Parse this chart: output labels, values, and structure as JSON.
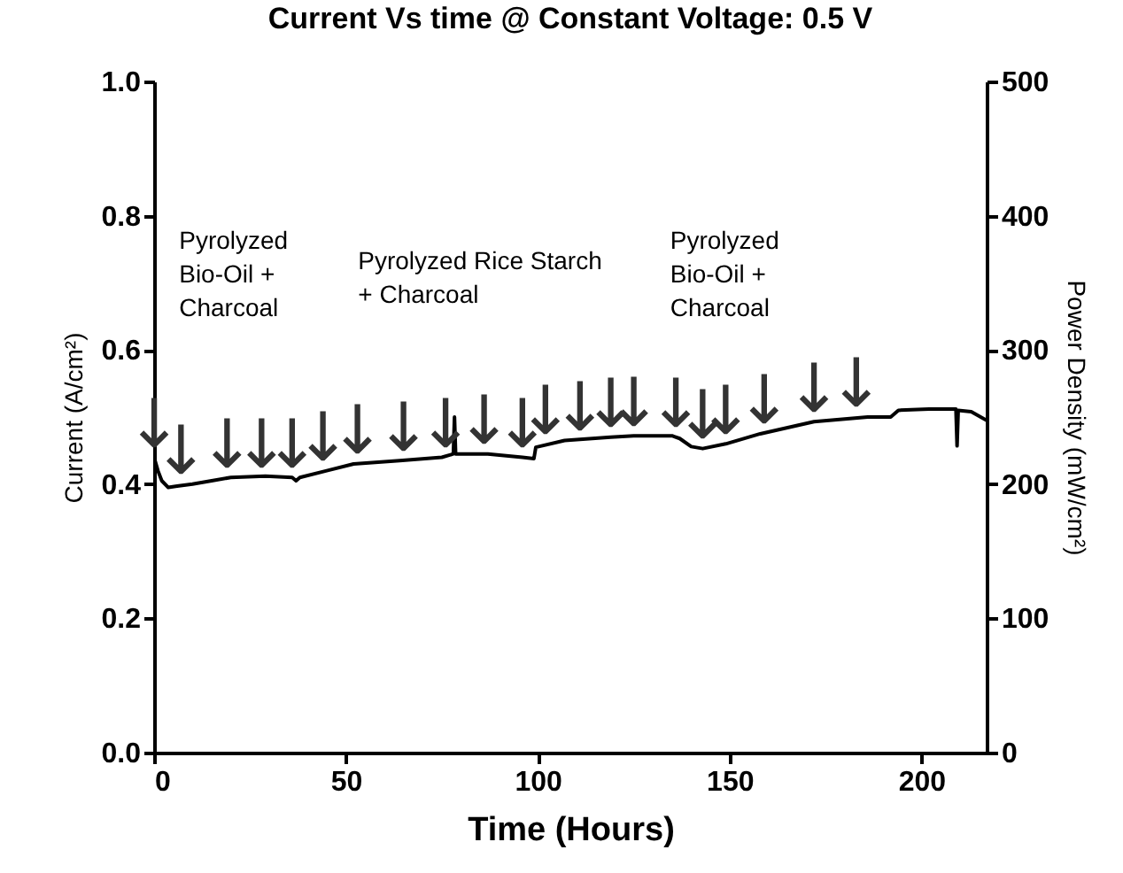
{
  "chart_data": {
    "type": "line",
    "title": "Current Vs time @ Constant Voltage: 0.5 V",
    "xlabel": "Time (Hours)",
    "ylabel": "Current (A/cm²)",
    "y2label": "Power Density (mW/cm²)",
    "series": [
      {
        "color": "#000000",
        "x": [
          0,
          1,
          2,
          3.7,
          6,
          10,
          15,
          20,
          29,
          36,
          37,
          38,
          45,
          52,
          64,
          75,
          78,
          78.3,
          78.6,
          87,
          96,
          99,
          99.5,
          107,
          119,
          125,
          135,
          137,
          140,
          143,
          149,
          158,
          172,
          186,
          192,
          194,
          202,
          209,
          209.3,
          209.6,
          213,
          217
        ],
        "values": [
          0.44,
          0.42,
          0.405,
          0.395,
          0.397,
          0.4,
          0.405,
          0.41,
          0.412,
          0.41,
          0.405,
          0.41,
          0.42,
          0.43,
          0.435,
          0.44,
          0.445,
          0.5,
          0.445,
          0.445,
          0.44,
          0.438,
          0.455,
          0.465,
          0.47,
          0.472,
          0.472,
          0.468,
          0.456,
          0.453,
          0.46,
          0.475,
          0.493,
          0.5,
          0.5,
          0.51,
          0.512,
          0.512,
          0.457,
          0.51,
          0.508,
          0.495
        ]
      }
    ],
    "xlim": [
      0,
      217
    ],
    "xticks": [
      0,
      50,
      100,
      150,
      200
    ],
    "ylim": [
      0,
      1
    ],
    "yticks": [
      {
        "value": 0,
        "label": "0.0"
      },
      {
        "value": 0.2,
        "label": "0.2"
      },
      {
        "value": 0.4,
        "label": "0.4"
      },
      {
        "value": 0.6,
        "label": "0.6"
      },
      {
        "value": 0.8,
        "label": "0.8"
      },
      {
        "value": 1,
        "label": "1.0"
      }
    ],
    "y2lim": [
      0,
      500
    ],
    "y2ticks": [
      0,
      100,
      200,
      300,
      400,
      500
    ],
    "annotations": [
      "Pyrolyzed\nBio-Oil +\nCharcoal",
      "Pyrolyzed Rice Starch\n+ Charcoal",
      "Pyrolyzed\nBio-Oil +\nCharcoal",
      {
        "text": "↓",
        "x": 0,
        "y": 0.45
      },
      {
        "text": "↓",
        "x": 7,
        "y": 0.41
      },
      {
        "text": "↓",
        "x": 19,
        "y": 0.42
      },
      {
        "text": "↓",
        "x": 28,
        "y": 0.42
      },
      {
        "text": "↓",
        "x": 36,
        "y": 0.42
      },
      {
        "text": "↓",
        "x": 44,
        "y": 0.43
      },
      {
        "text": "↓",
        "x": 53,
        "y": 0.44
      },
      {
        "text": "↓",
        "x": 65,
        "y": 0.445
      },
      {
        "text": "↓",
        "x": 76,
        "y": 0.45
      },
      {
        "text": "↓",
        "x": 86,
        "y": 0.455
      },
      {
        "text": "↓",
        "x": 96,
        "y": 0.45
      },
      {
        "text": "↓",
        "x": 102,
        "y": 0.47
      },
      {
        "text": "↓",
        "x": 111,
        "y": 0.475
      },
      {
        "text": "↓",
        "x": 119,
        "y": 0.48
      },
      {
        "text": "↓",
        "x": 125,
        "y": 0.482
      },
      {
        "text": "↓",
        "x": 136,
        "y": 0.48
      },
      {
        "text": "↓",
        "x": 143,
        "y": 0.463
      },
      {
        "text": "↓",
        "x": 149,
        "y": 0.47
      },
      {
        "text": "↓",
        "x": 159,
        "y": 0.485
      },
      {
        "text": "↓",
        "x": 172,
        "y": 0.503
      },
      {
        "text": "↓",
        "x": 183,
        "y": 0.51
      }
    ]
  }
}
